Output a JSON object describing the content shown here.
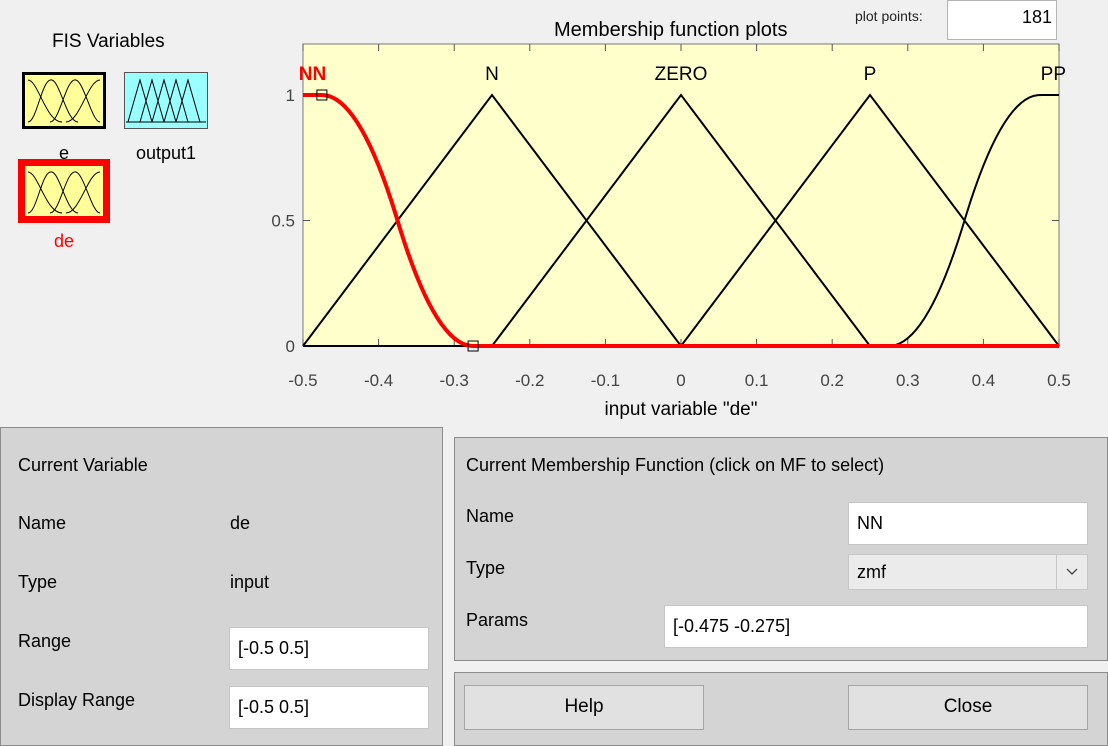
{
  "fis_panel": {
    "title": "FIS Variables",
    "variables": [
      {
        "label": "e",
        "kind": "input",
        "color": "#ffff99"
      },
      {
        "label": "output1",
        "kind": "output",
        "color": "#99ffff"
      },
      {
        "label": "de",
        "kind": "input",
        "color": "#ffff99",
        "selected": true
      }
    ]
  },
  "plot": {
    "title": "Membership function plots",
    "plot_points_label": "plot points:",
    "plot_points_value": "181",
    "xlabel": "input variable \"de\""
  },
  "chart_data": {
    "type": "line",
    "title": "Membership function plots",
    "xlabel": "input variable \"de\"",
    "ylabel": "",
    "xlim": [
      -0.5,
      0.5
    ],
    "ylim": [
      0,
      1
    ],
    "x_ticks": [
      "-0.5",
      "-0.4",
      "-0.3",
      "-0.2",
      "-0.1",
      "0",
      "0.1",
      "0.2",
      "0.3",
      "0.4",
      "0.5"
    ],
    "y_ticks": [
      "0",
      "0.5",
      "1"
    ],
    "background": "#ffffcc",
    "series": [
      {
        "name": "NN",
        "mf_type": "zmf",
        "params": [
          -0.475,
          -0.275
        ],
        "color": "#ff0000",
        "selected": true
      },
      {
        "name": "N",
        "mf_type": "trimf",
        "params": [
          -0.5,
          -0.25,
          0
        ],
        "color": "#000000"
      },
      {
        "name": "ZERO",
        "mf_type": "trimf",
        "params": [
          -0.25,
          0,
          0.25
        ],
        "color": "#000000"
      },
      {
        "name": "P",
        "mf_type": "trimf",
        "params": [
          0,
          0.25,
          0.5
        ],
        "color": "#000000"
      },
      {
        "name": "PP",
        "mf_type": "smf",
        "params": [
          0.275,
          0.475
        ],
        "color": "#000000"
      }
    ]
  },
  "current_variable": {
    "title": "Current Variable",
    "name_label": "Name",
    "name_value": "de",
    "type_label": "Type",
    "type_value": "input",
    "range_label": "Range",
    "range_value": "[-0.5 0.5]",
    "display_range_label": "Display Range",
    "display_range_value": "[-0.5 0.5]"
  },
  "current_mf": {
    "title": "Current Membership Function (click on MF to select)",
    "name_label": "Name",
    "name_value": "NN",
    "type_label": "Type",
    "type_value": "zmf",
    "params_label": "Params",
    "params_value": "[-0.475 -0.275]"
  },
  "buttons": {
    "help": "Help",
    "close": "Close"
  }
}
